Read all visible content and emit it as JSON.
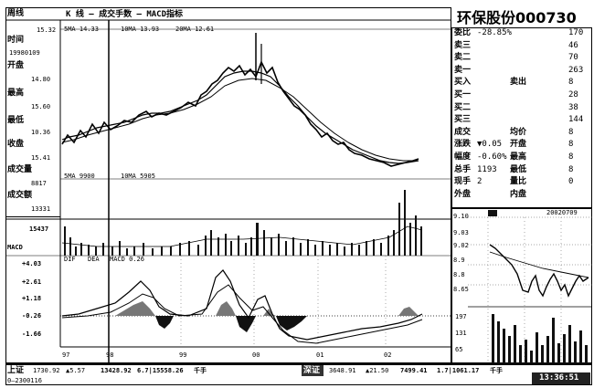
{
  "header": {
    "mode_label": "周线",
    "chart_title": "K 线 — 成交手数 — MACD指标",
    "stock_title": "环保股份000730",
    "top_left_value": "15.32"
  },
  "ma_labels": [
    "5MA 14.33",
    "10MA 13.93",
    "20MA 12.61"
  ],
  "vol_ma_labels": [
    "5MA 9900",
    "10MA 5905"
  ],
  "macd_labels": [
    "DIF",
    "DEA",
    "MACD 0.26"
  ],
  "left_panel": [
    {
      "label": "时间",
      "value": "19980109"
    },
    {
      "label": "开盘",
      "value": "14.80"
    },
    {
      "label": "最高",
      "value": "15.60"
    },
    {
      "label": "最低",
      "value": "10.36"
    },
    {
      "label": "收盘",
      "value": "15.41"
    },
    {
      "label": "成交量",
      "value": "8817"
    },
    {
      "label": "成交额",
      "value": "13331"
    }
  ],
  "price_axis": [],
  "vol_axis": [
    "15437"
  ],
  "macd_axis": [
    "+4.03",
    "+2.61",
    "+1.18",
    "-0.26",
    "-1.66"
  ],
  "macd_name": "MACD",
  "time_axis": [
    "97",
    "98",
    "99",
    "00",
    "01",
    "02"
  ],
  "quotes": [
    {
      "label": "委比",
      "value": "-28.85%",
      "extra": "",
      "right": "170"
    },
    {
      "label": "卖三",
      "value": "",
      "extra": "",
      "right": "46"
    },
    {
      "label": "卖二",
      "value": "",
      "extra": "",
      "right": "70"
    },
    {
      "label": "卖一",
      "value": "",
      "extra": "",
      "right": "263"
    },
    {
      "label": "买入",
      "value": "",
      "extra": "卖出",
      "right": "8"
    },
    {
      "label": "买一",
      "value": "",
      "extra": "",
      "right": "28"
    },
    {
      "label": "买二",
      "value": "",
      "extra": "",
      "right": "38"
    },
    {
      "label": "买三",
      "value": "",
      "extra": "",
      "right": "144"
    },
    {
      "label": "成交",
      "value": "",
      "extra": "均价",
      "right": "8"
    },
    {
      "label": "涨跌",
      "value": "▼0.05",
      "extra": "开盘",
      "right": "8"
    },
    {
      "label": "幅度",
      "value": "-0.60%",
      "extra": "最高",
      "right": "8"
    },
    {
      "label": "总手",
      "value": "1193",
      "extra": "最低",
      "right": "8"
    },
    {
      "label": "现手",
      "value": "2",
      "extra": "量比",
      "right": "0"
    },
    {
      "label": "外盘",
      "value": "",
      "extra": "内盘",
      "right": ""
    }
  ],
  "mini_chart": {
    "date": "20020709",
    "price_ticks": [
      "9.10",
      "9.03",
      "9.02",
      "8.9",
      "8.8",
      "8.65"
    ],
    "vol_ticks": [
      "197",
      "131",
      "65"
    ]
  },
  "status_bar": {
    "sh_label": "上证",
    "sh_index": "1730.92",
    "sh_change": "▲5.57",
    "sh_volume": "13428.92",
    "sh_amount": "6.7|15558.26",
    "sh_unit": "千手",
    "sz_label": "深证",
    "sz_index": "3648.91",
    "sz_change": "▲21.50",
    "sz_volume": "7499.41",
    "sz_amount": "1.7|1061.17",
    "sz_unit": "千手",
    "code_line": "0—2300116",
    "clock": "13:36:51"
  },
  "colors": {
    "ink": "#000000",
    "paper": "#ffffff",
    "gray": "#777777"
  }
}
